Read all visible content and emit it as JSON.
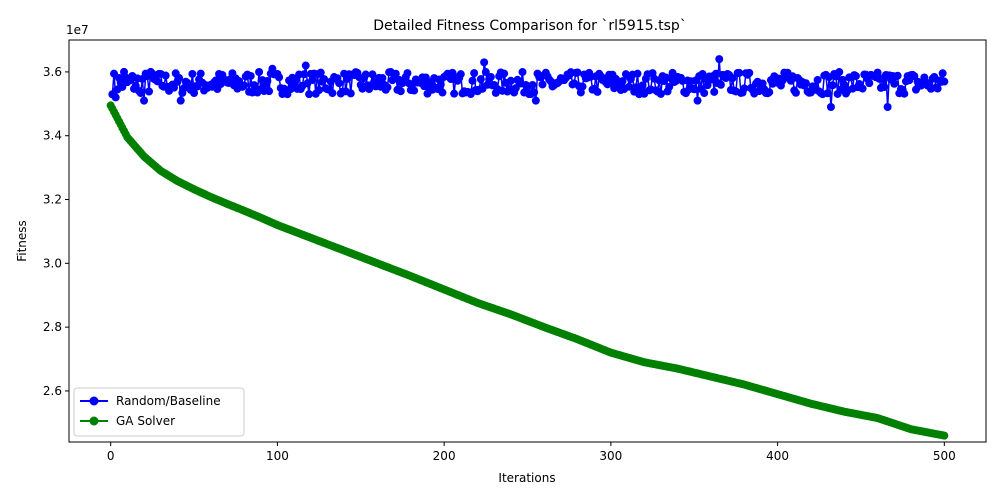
{
  "chart_data": {
    "type": "line",
    "title": "Detailed Fitness Comparison for `rl5915.tsp`",
    "xlabel": "Iterations",
    "ylabel": "Fitness",
    "y_offset_label": "1e7",
    "y_scale": 10000000,
    "xlim": [
      -25,
      525
    ],
    "ylim": [
      2.44,
      3.7
    ],
    "x_ticks": [
      0,
      100,
      200,
      300,
      400,
      500
    ],
    "y_ticks": [
      2.6,
      2.8,
      3.0,
      3.2,
      3.4,
      3.6
    ],
    "x_tick_labels": [
      "0",
      "100",
      "200",
      "300",
      "400",
      "500"
    ],
    "y_tick_labels": [
      "2.6",
      "2.8",
      "3.0",
      "3.2",
      "3.4",
      "3.6"
    ],
    "grid": false,
    "legend": "lower-left",
    "series": [
      {
        "name": "Random/Baseline",
        "color": "#0000ff",
        "x_range": [
          1,
          500
        ],
        "mean": 3.565,
        "spread": 0.035,
        "seed": 7,
        "spikes": [
          [
            3,
            3.52
          ],
          [
            8,
            3.6
          ],
          [
            17,
            3.54
          ],
          [
            20,
            3.51
          ],
          [
            24,
            3.6
          ],
          [
            42,
            3.51
          ],
          [
            97,
            3.61
          ],
          [
            117,
            3.62
          ],
          [
            255,
            3.51
          ],
          [
            224,
            3.63
          ],
          [
            352,
            3.51
          ],
          [
            365,
            3.64
          ],
          [
            432,
            3.49
          ],
          [
            466,
            3.49
          ]
        ]
      },
      {
        "name": "GA Solver",
        "color": "#008000",
        "x": [
          0,
          5,
          10,
          20,
          30,
          40,
          50,
          60,
          70,
          80,
          90,
          100,
          120,
          140,
          160,
          180,
          200,
          220,
          240,
          260,
          280,
          300,
          320,
          340,
          360,
          380,
          400,
          420,
          440,
          460,
          480,
          500
        ],
        "y": [
          3.495,
          3.445,
          3.395,
          3.335,
          3.29,
          3.258,
          3.232,
          3.208,
          3.186,
          3.165,
          3.143,
          3.12,
          3.08,
          3.04,
          3.0,
          2.96,
          2.918,
          2.876,
          2.84,
          2.8,
          2.762,
          2.72,
          2.69,
          2.67,
          2.645,
          2.62,
          2.59,
          2.56,
          2.535,
          2.515,
          2.48,
          2.46
        ]
      }
    ]
  }
}
